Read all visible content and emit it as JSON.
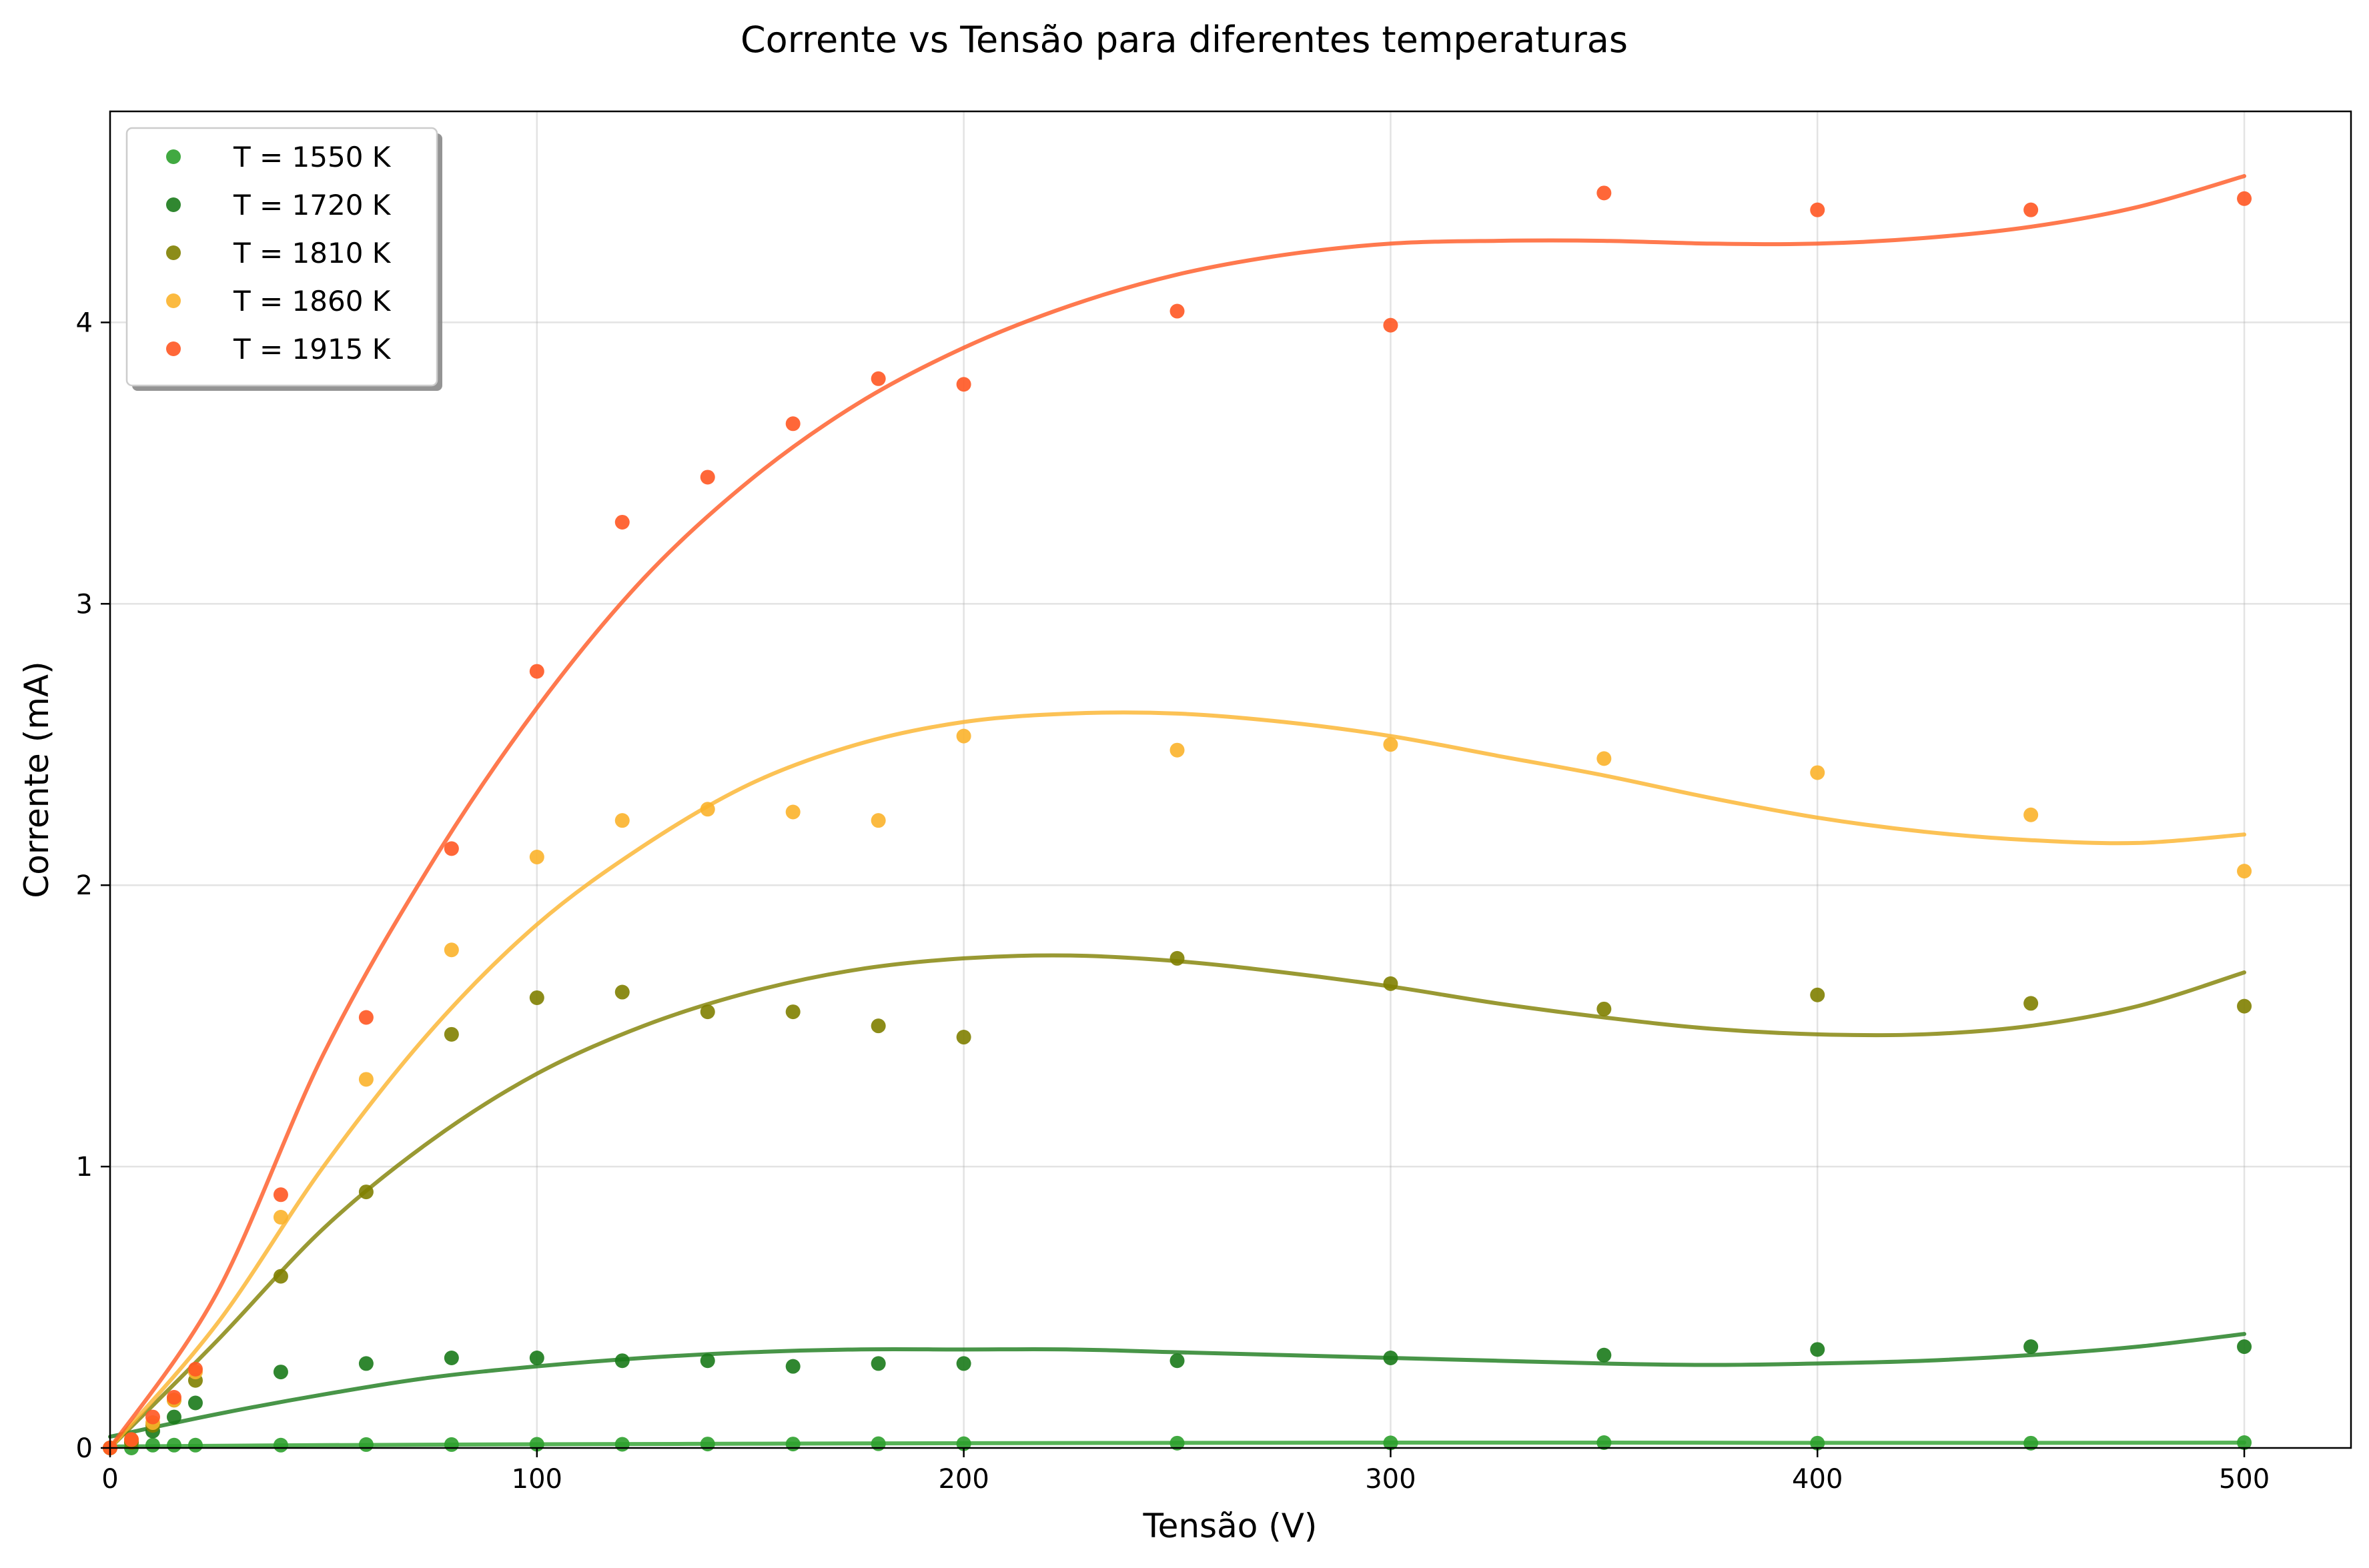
{
  "chart_data": {
    "type": "scatter",
    "title": "Corrente vs Tensão para diferentes temperaturas",
    "xlabel": "Tensão (V)",
    "ylabel": "Corrente (mA)",
    "xlim": [
      0,
      525
    ],
    "ylim": [
      0,
      4.75
    ],
    "xticks": [
      0,
      100,
      200,
      300,
      400,
      500
    ],
    "yticks": [
      0,
      1,
      2,
      3,
      4
    ],
    "grid": true,
    "legend_position": "top-left",
    "series": [
      {
        "name": "T = 1550 K",
        "color": "#2ca02c",
        "x": [
          0,
          5,
          10,
          15,
          20,
          40,
          60,
          80,
          100,
          120,
          140,
          160,
          180,
          200,
          250,
          300,
          350,
          400,
          450,
          500
        ],
        "y": [
          0.0,
          0.0,
          0.01,
          0.01,
          0.01,
          0.01,
          0.012,
          0.012,
          0.013,
          0.013,
          0.014,
          0.014,
          0.015,
          0.015,
          0.017,
          0.018,
          0.019,
          0.017,
          0.017,
          0.019
        ],
        "fit_x": [
          0,
          50,
          100,
          150,
          200,
          250,
          300,
          350,
          400,
          450,
          500
        ],
        "fit_y": [
          0.005,
          0.01,
          0.013,
          0.015,
          0.017,
          0.018,
          0.019,
          0.019,
          0.018,
          0.018,
          0.019
        ]
      },
      {
        "name": "T = 1720 K",
        "color": "#1a7a1a",
        "x": [
          0,
          5,
          10,
          15,
          20,
          40,
          60,
          80,
          100,
          120,
          140,
          160,
          180,
          200,
          250,
          300,
          350,
          400,
          450,
          500
        ],
        "y": [
          0.0,
          0.02,
          0.06,
          0.11,
          0.16,
          0.27,
          0.3,
          0.32,
          0.32,
          0.31,
          0.31,
          0.29,
          0.3,
          0.3,
          0.31,
          0.32,
          0.33,
          0.35,
          0.36,
          0.36
        ],
        "fit_x": [
          0,
          25,
          50,
          75,
          100,
          125,
          150,
          175,
          200,
          225,
          250,
          275,
          300,
          325,
          350,
          375,
          400,
          425,
          450,
          475,
          500
        ],
        "fit_y": [
          0.04,
          0.12,
          0.19,
          0.25,
          0.29,
          0.32,
          0.34,
          0.35,
          0.35,
          0.35,
          0.34,
          0.33,
          0.32,
          0.31,
          0.3,
          0.295,
          0.3,
          0.31,
          0.33,
          0.36,
          0.405
        ]
      },
      {
        "name": "T = 1810 K",
        "color": "#808000",
        "x": [
          0,
          5,
          10,
          15,
          20,
          40,
          60,
          80,
          100,
          120,
          140,
          160,
          180,
          200,
          250,
          300,
          350,
          400,
          450,
          500
        ],
        "y": [
          0.0,
          0.02,
          0.08,
          0.17,
          0.24,
          0.61,
          0.91,
          1.47,
          1.6,
          1.62,
          1.55,
          1.55,
          1.5,
          1.46,
          1.74,
          1.65,
          1.56,
          1.61,
          1.58,
          1.57
        ],
        "fit_x": [
          0,
          25,
          50,
          75,
          100,
          125,
          150,
          175,
          200,
          225,
          250,
          275,
          300,
          325,
          350,
          375,
          400,
          425,
          450,
          475,
          500
        ],
        "fit_y": [
          0.0,
          0.38,
          0.78,
          1.09,
          1.33,
          1.5,
          1.62,
          1.7,
          1.74,
          1.75,
          1.73,
          1.69,
          1.64,
          1.58,
          1.53,
          1.49,
          1.47,
          1.47,
          1.5,
          1.57,
          1.69
        ]
      },
      {
        "name": "T = 1860 K",
        "color": "#fbb32b",
        "x": [
          0,
          5,
          10,
          15,
          20,
          40,
          60,
          80,
          100,
          120,
          140,
          160,
          180,
          200,
          250,
          300,
          350,
          400,
          450,
          500
        ],
        "y": [
          0.0,
          0.03,
          0.09,
          0.17,
          0.27,
          0.82,
          1.31,
          1.77,
          2.1,
          2.23,
          2.27,
          2.26,
          2.23,
          2.53,
          2.48,
          2.5,
          2.45,
          2.4,
          2.25,
          2.05
        ],
        "fit_x": [
          0,
          25,
          50,
          75,
          100,
          125,
          150,
          175,
          200,
          225,
          250,
          275,
          300,
          325,
          350,
          375,
          400,
          425,
          450,
          475,
          500
        ],
        "fit_y": [
          0.0,
          0.44,
          1.0,
          1.48,
          1.86,
          2.14,
          2.36,
          2.5,
          2.58,
          2.61,
          2.61,
          2.58,
          2.53,
          2.46,
          2.39,
          2.31,
          2.24,
          2.19,
          2.16,
          2.15,
          2.18
        ]
      },
      {
        "name": "T = 1915 K",
        "color": "#ff5722",
        "x": [
          0,
          5,
          10,
          15,
          20,
          40,
          60,
          80,
          100,
          120,
          140,
          160,
          180,
          200,
          250,
          300,
          350,
          400,
          450,
          500
        ],
        "y": [
          0.0,
          0.03,
          0.11,
          0.18,
          0.28,
          0.9,
          1.53,
          2.13,
          2.76,
          3.29,
          3.45,
          3.64,
          3.8,
          3.78,
          4.04,
          3.99,
          4.46,
          4.4,
          4.4,
          4.44
        ],
        "fit_x": [
          0,
          25,
          50,
          75,
          100,
          125,
          150,
          175,
          200,
          225,
          250,
          275,
          300,
          325,
          350,
          375,
          400,
          425,
          450,
          475,
          500
        ],
        "fit_y": [
          0.0,
          0.55,
          1.4,
          2.07,
          2.63,
          3.09,
          3.44,
          3.71,
          3.91,
          4.06,
          4.17,
          4.24,
          4.28,
          4.29,
          4.29,
          4.28,
          4.28,
          4.3,
          4.34,
          4.41,
          4.52
        ]
      }
    ]
  }
}
